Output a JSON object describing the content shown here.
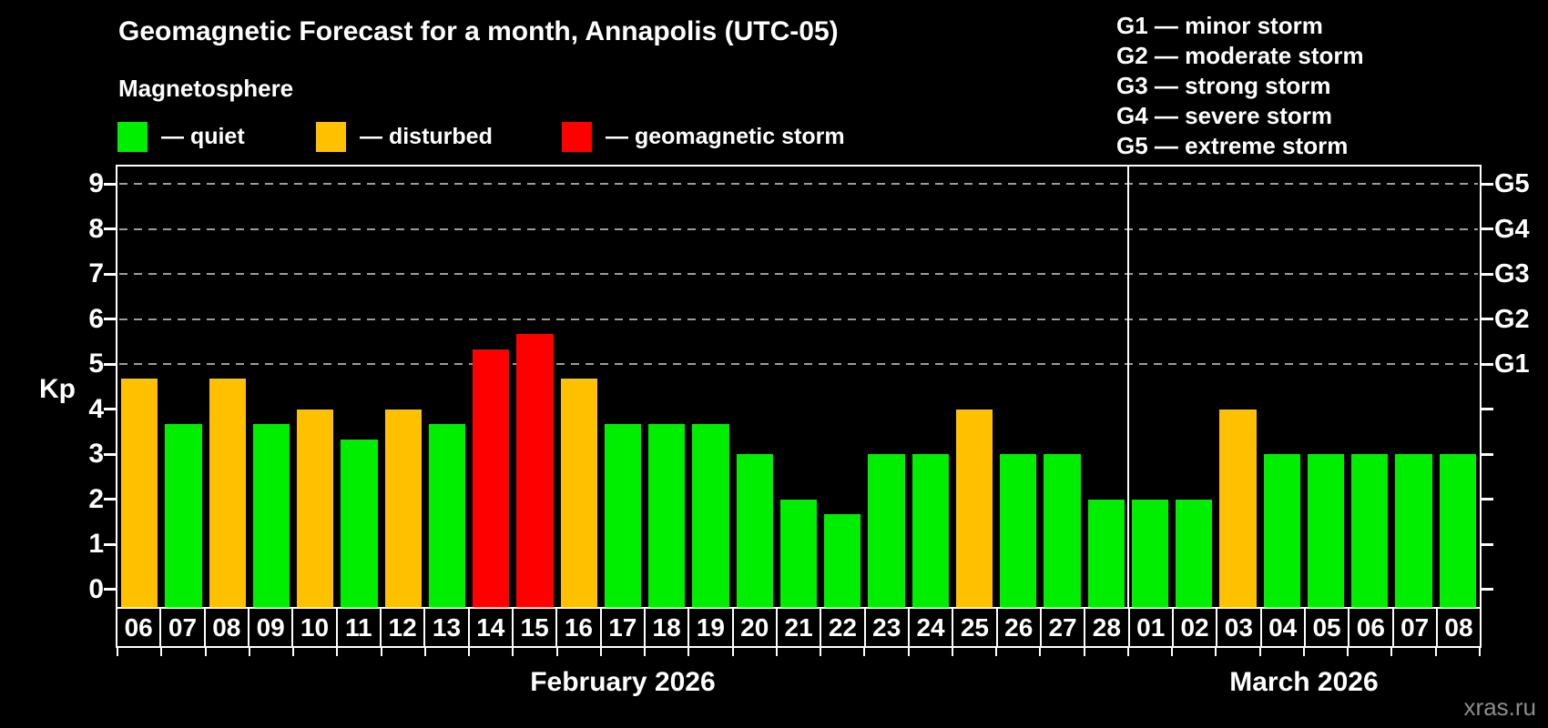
{
  "title": "Geomagnetic Forecast for a month, Annapolis (UTC-05)",
  "subtitle": "Magnetosphere",
  "status_colors": {
    "quiet": "#00EE00",
    "disturbed": "#FFC000",
    "storm": "#FF0000"
  },
  "legend": [
    {
      "key": "quiet",
      "label": "— quiet"
    },
    {
      "key": "disturbed",
      "label": "— disturbed"
    },
    {
      "key": "storm",
      "label": "— geomagnetic storm"
    }
  ],
  "storm_scale_legend": [
    "G1 — minor storm",
    "G2 — moderate storm",
    "G3 — strong storm",
    "G4 — severe storm",
    "G5 — extreme storm"
  ],
  "watermark": "xras.ru",
  "chart_data": {
    "type": "bar",
    "title": "Geomagnetic Forecast for a month, Annapolis (UTC-05)",
    "ylabel": "Kp",
    "ylim": [
      0,
      9.4
    ],
    "yticks": [
      0,
      1,
      2,
      3,
      4,
      5,
      6,
      7,
      8,
      9
    ],
    "grid": true,
    "grid_levels": [
      5,
      6,
      7,
      8,
      9
    ],
    "legend_position": "top",
    "right_axis": [
      {
        "kp": 5,
        "label": "G1"
      },
      {
        "kp": 6,
        "label": "G2"
      },
      {
        "kp": 7,
        "label": "G3"
      },
      {
        "kp": 8,
        "label": "G4"
      },
      {
        "kp": 9,
        "label": "G5"
      }
    ],
    "months": [
      {
        "label": "February 2026",
        "days": [
          {
            "day": "06",
            "kp": 4.67,
            "status": "disturbed"
          },
          {
            "day": "07",
            "kp": 3.67,
            "status": "quiet"
          },
          {
            "day": "08",
            "kp": 4.67,
            "status": "disturbed"
          },
          {
            "day": "09",
            "kp": 3.67,
            "status": "quiet"
          },
          {
            "day": "10",
            "kp": 4.0,
            "status": "disturbed"
          },
          {
            "day": "11",
            "kp": 3.33,
            "status": "quiet"
          },
          {
            "day": "12",
            "kp": 4.0,
            "status": "disturbed"
          },
          {
            "day": "13",
            "kp": 3.67,
            "status": "quiet"
          },
          {
            "day": "14",
            "kp": 5.33,
            "status": "storm"
          },
          {
            "day": "15",
            "kp": 5.67,
            "status": "storm"
          },
          {
            "day": "16",
            "kp": 4.67,
            "status": "disturbed"
          },
          {
            "day": "17",
            "kp": 3.67,
            "status": "quiet"
          },
          {
            "day": "18",
            "kp": 3.67,
            "status": "quiet"
          },
          {
            "day": "19",
            "kp": 3.67,
            "status": "quiet"
          },
          {
            "day": "20",
            "kp": 3.0,
            "status": "quiet"
          },
          {
            "day": "21",
            "kp": 2.0,
            "status": "quiet"
          },
          {
            "day": "22",
            "kp": 1.67,
            "status": "quiet"
          },
          {
            "day": "23",
            "kp": 3.0,
            "status": "quiet"
          },
          {
            "day": "24",
            "kp": 3.0,
            "status": "quiet"
          },
          {
            "day": "25",
            "kp": 4.0,
            "status": "disturbed"
          },
          {
            "day": "26",
            "kp": 3.0,
            "status": "quiet"
          },
          {
            "day": "27",
            "kp": 3.0,
            "status": "quiet"
          },
          {
            "day": "28",
            "kp": 2.0,
            "status": "quiet"
          }
        ]
      },
      {
        "label": "March 2026",
        "days": [
          {
            "day": "01",
            "kp": 2.0,
            "status": "quiet"
          },
          {
            "day": "02",
            "kp": 2.0,
            "status": "quiet"
          },
          {
            "day": "03",
            "kp": 4.0,
            "status": "disturbed"
          },
          {
            "day": "04",
            "kp": 3.0,
            "status": "quiet"
          },
          {
            "day": "05",
            "kp": 3.0,
            "status": "quiet"
          },
          {
            "day": "06",
            "kp": 3.0,
            "status": "quiet"
          },
          {
            "day": "07",
            "kp": 3.0,
            "status": "quiet"
          },
          {
            "day": "08",
            "kp": 3.0,
            "status": "quiet"
          }
        ]
      }
    ]
  }
}
